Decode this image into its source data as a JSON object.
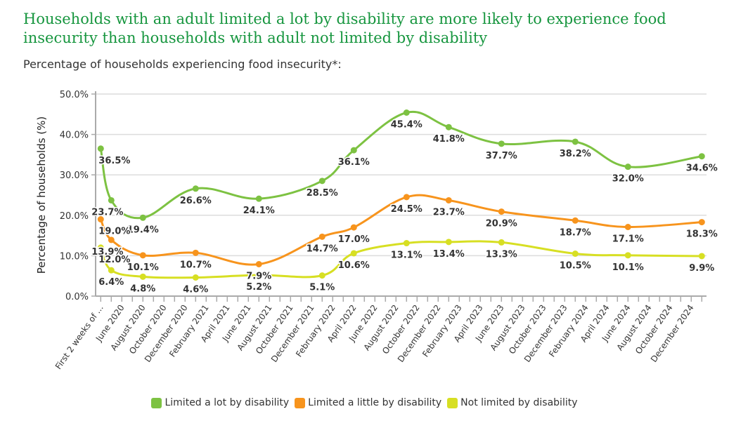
{
  "title": "Households with an adult limited a lot by disability are more likely to experience food insecurity than households with adult not limited by disability",
  "subtitle": "Percentage of households experiencing food insecurity*:",
  "chart_data": {
    "type": "line",
    "ylabel": "Percentage of households (%)",
    "ylim": [
      0,
      50
    ],
    "yticks": [
      "0.0%",
      "10.0%",
      "20.0%",
      "30.0%",
      "40.0%",
      "50.0%"
    ],
    "ytick_values": [
      0,
      10,
      20,
      30,
      40,
      50
    ],
    "grid": true,
    "legend_position": "bottom",
    "x_tick_labels": [
      "First 2 weeks of ...",
      "June 2020",
      "August 2020",
      "October 2020",
      "December 2020",
      "February 2021",
      "April 2021",
      "June 2021",
      "August 2021",
      "October 2021",
      "December 2021",
      "February 2022",
      "April 2022",
      "June 2022",
      "August 2022",
      "October 2022",
      "December 2022",
      "February 2023",
      "April 2023",
      "June 2023",
      "August 2023",
      "October 2023",
      "December 2023",
      "February 2024",
      "April 2024",
      "June 2024",
      "August 2024",
      "October 2024",
      "December 2024"
    ],
    "x": [
      "First 2 weeks of ...",
      "2020-05",
      "2020-08",
      "2021-01",
      "2021-07",
      "2022-01",
      "2022-04",
      "2022-09",
      "2023-01",
      "2023-06",
      "2024-01",
      "2024-06",
      "2025-01"
    ],
    "series": [
      {
        "name": "Limited a lot by disability",
        "color": "#7dc242",
        "values": [
          36.5,
          23.7,
          19.4,
          26.6,
          24.1,
          28.5,
          36.1,
          45.4,
          41.8,
          37.7,
          38.2,
          32.0,
          34.6
        ],
        "labels": [
          "36.5%",
          "23.7%",
          "19.4%",
          "26.6%",
          "24.1%",
          "28.5%",
          "36.1%",
          "45.4%",
          "41.8%",
          "37.7%",
          "38.2%",
          "32.0%",
          "34.6%"
        ]
      },
      {
        "name": "Limited a little by disability",
        "color": "#f7941d",
        "values": [
          19.0,
          13.9,
          10.1,
          10.7,
          7.9,
          14.7,
          17.0,
          24.5,
          23.7,
          20.9,
          18.7,
          17.1,
          18.3
        ],
        "labels": [
          "19.0%",
          "13.9%",
          "10.1%",
          "10.7%",
          "7.9%",
          "14.7%",
          "17.0%",
          "24.5%",
          "23.7%",
          "20.9%",
          "18.7%",
          "17.1%",
          "18.3%"
        ]
      },
      {
        "name": "Not limited by disability",
        "color": "#d7df23",
        "values": [
          12.0,
          6.4,
          4.8,
          4.6,
          5.2,
          5.1,
          10.6,
          13.1,
          13.4,
          13.3,
          10.5,
          10.1,
          9.9
        ],
        "labels": [
          "12.0%",
          "6.4%",
          "4.8%",
          "4.6%",
          "5.2%",
          "5.1%",
          "10.6%",
          "13.1%",
          "13.4%",
          "13.3%",
          "10.5%",
          "10.1%",
          "9.9%"
        ]
      }
    ]
  }
}
